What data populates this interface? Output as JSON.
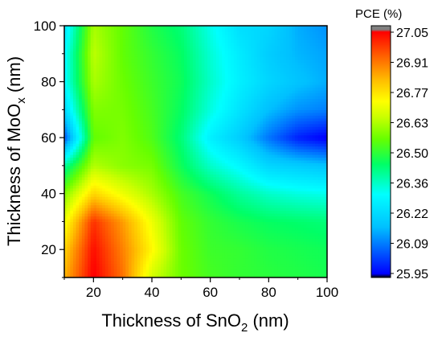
{
  "chart_data": {
    "type": "heatmap",
    "xlabel": {
      "prefix": "Thickness of SnO",
      "sub": "2",
      "suffix": " (nm)"
    },
    "ylabel": {
      "prefix": "Thickness of MoO",
      "sub": "x",
      "suffix": " (nm)"
    },
    "xlim": [
      10,
      100
    ],
    "ylim": [
      10,
      100
    ],
    "x_ticks": [
      20,
      40,
      60,
      80,
      100
    ],
    "y_ticks": [
      20,
      40,
      60,
      80,
      100
    ],
    "x_tick_labels": [
      "20",
      "40",
      "60",
      "80",
      "100"
    ],
    "y_tick_labels": [
      "20",
      "40",
      "60",
      "80",
      "100"
    ],
    "x": [
      10,
      20,
      30,
      40,
      50,
      60,
      70,
      80,
      90,
      100
    ],
    "y": [
      10,
      20,
      30,
      40,
      50,
      60,
      70,
      80,
      90,
      100
    ],
    "z": [
      [
        26.82,
        27.03,
        26.9,
        26.66,
        26.56,
        26.52,
        26.5,
        26.49,
        26.48,
        26.47
      ],
      [
        26.78,
        27.01,
        26.88,
        26.73,
        26.56,
        26.51,
        26.5,
        26.48,
        26.47,
        26.46
      ],
      [
        26.7,
        26.97,
        26.85,
        26.7,
        26.55,
        26.5,
        26.47,
        26.45,
        26.44,
        26.43
      ],
      [
        26.58,
        26.78,
        26.7,
        26.62,
        26.52,
        26.46,
        26.4,
        26.36,
        26.34,
        26.33
      ],
      [
        26.4,
        26.63,
        26.59,
        26.57,
        26.46,
        26.36,
        26.3,
        26.22,
        26.2,
        26.18
      ],
      [
        26.05,
        26.55,
        26.58,
        26.53,
        26.43,
        26.28,
        26.2,
        26.09,
        26.0,
        25.96
      ],
      [
        26.22,
        26.58,
        26.57,
        26.52,
        26.45,
        26.34,
        26.25,
        26.17,
        26.12,
        26.1
      ],
      [
        26.3,
        26.62,
        26.56,
        26.51,
        26.46,
        26.36,
        26.28,
        26.22,
        26.18,
        26.15
      ],
      [
        26.3,
        26.64,
        26.55,
        26.5,
        26.45,
        26.35,
        26.27,
        26.2,
        26.16,
        26.14
      ],
      [
        26.25,
        26.62,
        26.55,
        26.48,
        26.43,
        26.33,
        26.24,
        26.22,
        26.15,
        26.12
      ]
    ],
    "colorbar": {
      "title": "PCE (%)",
      "ticks": [
        27.05,
        26.91,
        26.77,
        26.63,
        26.5,
        26.36,
        26.22,
        26.09,
        25.95
      ],
      "tick_labels": [
        "27.05",
        "26.91",
        "26.77",
        "26.63",
        "26.50",
        "26.36",
        "26.22",
        "26.09",
        "25.95"
      ],
      "min": 25.95,
      "max": 27.05
    },
    "colormap": [
      "#000000",
      "#0000ff",
      "#00c0ff",
      "#00ffff",
      "#00ff66",
      "#66ff00",
      "#ccff00",
      "#ffff00",
      "#ffc000",
      "#ff6000",
      "#ff0000",
      "#808080"
    ]
  }
}
